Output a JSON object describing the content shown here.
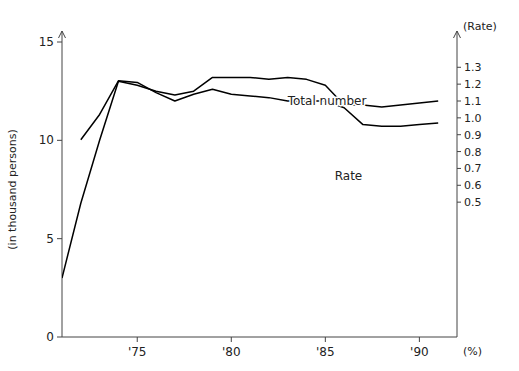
{
  "chart_data": {
    "type": "line",
    "x": [
      1971,
      1972,
      1973,
      1974,
      1975,
      1976,
      1977,
      1978,
      1979,
      1980,
      1981,
      1982,
      1983,
      1984,
      1985,
      1986,
      1987,
      1988,
      1989,
      1990,
      1991
    ],
    "series": [
      {
        "color": "#000000",
        "values": [
          3.0,
          6.8,
          10.0,
          13.0,
          12.8,
          12.5,
          12.3,
          12.5,
          13.2,
          13.2,
          13.2,
          13.1,
          13.2,
          13.1,
          12.8,
          11.8,
          11.8,
          11.7,
          11.8,
          11.9,
          12.0
        ]
      },
      {
        "color": "#000000",
        "axis": "y2",
        "values": [
          null,
          0.87,
          1.02,
          1.22,
          1.21,
          1.15,
          1.1,
          1.14,
          1.17,
          1.14,
          1.13,
          1.12,
          1.1,
          1.1,
          1.1,
          1.06,
          0.96,
          0.95,
          0.95,
          0.96,
          0.97
        ]
      }
    ],
    "xlim": [
      1971,
      1992
    ],
    "xticks": [
      {
        "value": 1975,
        "label": "'75"
      },
      {
        "value": 1980,
        "label": "'80"
      },
      {
        "value": 1985,
        "label": "'85"
      },
      {
        "value": 1990,
        "label": "'90"
      }
    ],
    "ylim": [
      0,
      15
    ],
    "yticks": [
      0,
      5,
      10,
      15
    ],
    "ylabel": "(in thousand persons)",
    "y2lim": [
      -0.3,
      1.45
    ],
    "y2ticks": [
      0.5,
      0.6,
      0.7,
      0.8,
      0.9,
      {
        "value": 1,
        "label": "1.0"
      },
      1.1,
      1.2,
      1.3
    ],
    "y2label": "(Rate)",
    "y2unit_label": "(%)",
    "annotations": [
      {
        "text": "Total number",
        "x": 1983,
        "y": 12.0
      },
      {
        "text": "Rate",
        "x": 1985.5,
        "y": 8.2
      }
    ]
  }
}
